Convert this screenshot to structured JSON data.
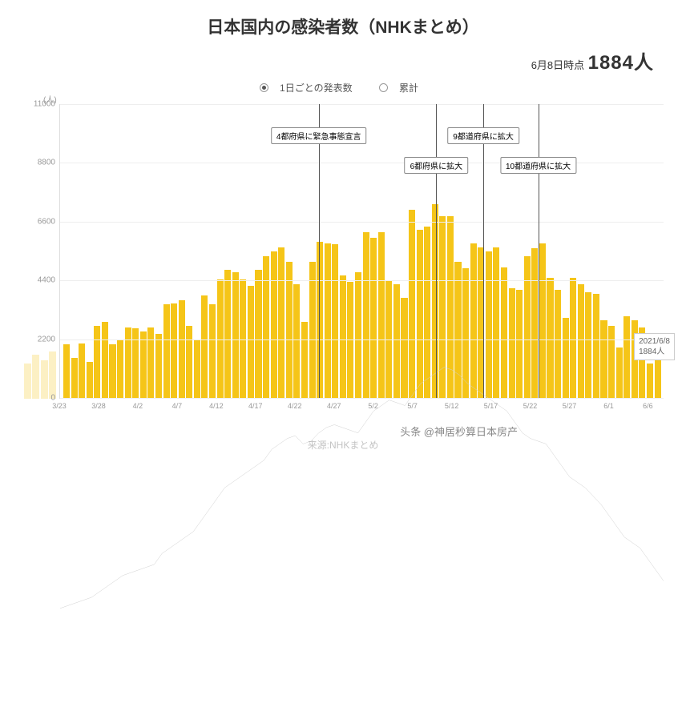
{
  "title": "日本国内の感染者数（NHKまとめ）",
  "subtitle": {
    "date_label": "6月8日時点",
    "count_label": "1884人"
  },
  "legend": {
    "opt1": "1日ごとの発表数",
    "opt2": "累計",
    "selected": 0
  },
  "y_unit": "(人)",
  "chart": {
    "type": "bar",
    "ylim": [
      0,
      11000
    ],
    "yticks": [
      0,
      2200,
      4400,
      6600,
      8800,
      11000
    ],
    "bar_color": "#f5c518",
    "trend_color": "#d0d0d0",
    "grid_color": "#eeeeee",
    "axis_color": "#dddddd",
    "background": "#ffffff",
    "values": [
      2000,
      1500,
      2050,
      1350,
      2700,
      2850,
      2000,
      2200,
      2650,
      2600,
      2500,
      2650,
      2400,
      3500,
      3550,
      3650,
      2700,
      2200,
      3850,
      3500,
      4450,
      4800,
      4700,
      4450,
      4200,
      4800,
      5300,
      5500,
      5650,
      5100,
      4250,
      2850,
      5100,
      5850,
      5800,
      5750,
      4600,
      4350,
      4700,
      6200,
      6000,
      6200,
      4400,
      4250,
      3750,
      7050,
      6300,
      6400,
      7250,
      6800,
      6800,
      5100,
      4850,
      5800,
      5650,
      5500,
      5650,
      4900,
      4100,
      4050,
      5300,
      5600,
      5800,
      4500,
      4050,
      3000,
      4500,
      4250,
      3950,
      3900,
      2900,
      2700,
      1900,
      3050,
      2900,
      2650,
      1300,
      1900
    ],
    "trend_values": [
      1800,
      1850,
      1900,
      1950,
      2000,
      2100,
      2200,
      2300,
      2400,
      2450,
      2500,
      2550,
      2600,
      2800,
      2900,
      3000,
      3100,
      3200,
      3400,
      3600,
      3800,
      4000,
      4100,
      4200,
      4300,
      4400,
      4500,
      4700,
      4800,
      4900,
      4950,
      4800,
      4850,
      5000,
      5100,
      5150,
      5100,
      5050,
      5000,
      5200,
      5400,
      5500,
      5600,
      5550,
      5500,
      5700,
      5900,
      6000,
      6100,
      6200,
      6150,
      6050,
      5900,
      5800,
      5700,
      5600,
      5500,
      5400,
      5200,
      5000,
      4900,
      4850,
      4800,
      4600,
      4400,
      4200,
      4100,
      4000,
      3850,
      3700,
      3500,
      3300,
      3100,
      3000,
      2900,
      2700,
      2500,
      2300
    ],
    "xticks": [
      {
        "i": 0,
        "label": "3/23"
      },
      {
        "i": 5,
        "label": "3/28"
      },
      {
        "i": 10,
        "label": "4/2"
      },
      {
        "i": 15,
        "label": "4/7"
      },
      {
        "i": 20,
        "label": "4/12"
      },
      {
        "i": 25,
        "label": "4/17"
      },
      {
        "i": 30,
        "label": "4/22"
      },
      {
        "i": 35,
        "label": "4/27"
      },
      {
        "i": 40,
        "label": "5/2"
      },
      {
        "i": 45,
        "label": "5/7"
      },
      {
        "i": 50,
        "label": "5/12"
      },
      {
        "i": 55,
        "label": "5/17"
      },
      {
        "i": 60,
        "label": "5/22"
      },
      {
        "i": 65,
        "label": "5/27"
      },
      {
        "i": 70,
        "label": "6/1"
      },
      {
        "i": 75,
        "label": "6/6"
      }
    ],
    "annotations": [
      {
        "i": 33,
        "label": "4都府県に緊急事態宣言",
        "top_pct": 8
      },
      {
        "i": 48,
        "label": "6都府県に拡大",
        "top_pct": 18
      },
      {
        "i": 54,
        "label": "9都道府県に拡大",
        "top_pct": 8
      },
      {
        "i": 61,
        "label": "10都道府県に拡大",
        "top_pct": 18
      }
    ],
    "callout": {
      "line1": "2021/6/8",
      "line2": "1884人"
    }
  },
  "watermark": "来源:NHKまとめ",
  "wm2": "头条 @神居秒算日本房产"
}
